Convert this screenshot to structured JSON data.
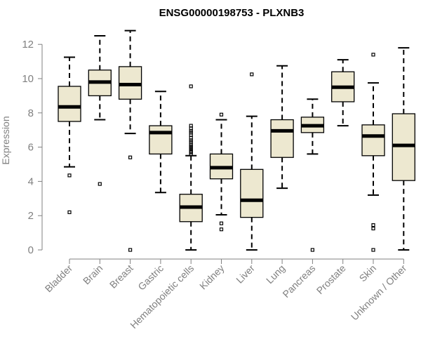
{
  "chart_data": {
    "type": "boxplot",
    "title": "ENSG00000198753 - PLXNB3",
    "xlabel": "",
    "ylabel": "Expression",
    "ylim": [
      0,
      12.6
    ],
    "yticks": [
      0,
      2,
      4,
      6,
      8,
      10,
      12
    ],
    "box_fill": "#ede8d0",
    "categories": [
      "Bladder",
      "Brain",
      "Breast",
      "Gastric",
      "Hematopoietic cells",
      "Kidney",
      "Liver",
      "Lung",
      "Pancreas",
      "Prostate",
      "Skin",
      "Unknown / Other"
    ],
    "boxes": [
      {
        "name": "Bladder",
        "min": 4.85,
        "q1": 7.5,
        "median": 8.35,
        "q3": 9.55,
        "max": 11.25,
        "outliers": [
          4.35,
          2.2
        ]
      },
      {
        "name": "Brain",
        "min": 7.6,
        "q1": 9.0,
        "median": 9.8,
        "q3": 10.5,
        "max": 12.5,
        "outliers": [
          3.85
        ]
      },
      {
        "name": "Breast",
        "min": 6.8,
        "q1": 8.8,
        "median": 9.65,
        "q3": 10.7,
        "max": 12.8,
        "outliers": [
          5.4,
          0.0
        ]
      },
      {
        "name": "Gastric",
        "min": 3.35,
        "q1": 5.6,
        "median": 6.85,
        "q3": 7.25,
        "max": 9.25,
        "outliers": []
      },
      {
        "name": "Hematopoietic cells",
        "min": 0.0,
        "q1": 1.65,
        "median": 2.5,
        "q3": 3.25,
        "max": 5.5,
        "outliers": [
          9.55,
          7.25,
          7.1,
          6.95,
          6.85,
          6.7,
          6.55,
          6.4,
          6.3,
          6.15,
          6.05,
          5.95,
          5.85,
          5.75,
          5.7,
          5.6
        ]
      },
      {
        "name": "Kidney",
        "min": 2.05,
        "q1": 4.15,
        "median": 4.8,
        "q3": 5.6,
        "max": 7.6,
        "outliers": [
          7.9,
          1.55,
          1.2
        ]
      },
      {
        "name": "Liver",
        "min": 0.0,
        "q1": 1.9,
        "median": 2.9,
        "q3": 4.7,
        "max": 7.8,
        "outliers": [
          10.25
        ]
      },
      {
        "name": "Lung",
        "min": 3.6,
        "q1": 5.4,
        "median": 6.95,
        "q3": 7.6,
        "max": 10.75,
        "outliers": []
      },
      {
        "name": "Pancreas",
        "min": 5.6,
        "q1": 6.85,
        "median": 7.25,
        "q3": 7.75,
        "max": 8.8,
        "outliers": [
          0.0
        ]
      },
      {
        "name": "Prostate",
        "min": 7.25,
        "q1": 8.65,
        "median": 9.5,
        "q3": 10.4,
        "max": 11.1,
        "outliers": []
      },
      {
        "name": "Skin",
        "min": 3.2,
        "q1": 5.5,
        "median": 6.65,
        "q3": 7.3,
        "max": 9.75,
        "outliers": [
          11.4,
          1.45,
          1.25,
          0.0
        ]
      },
      {
        "name": "Unknown / Other",
        "min": 0.0,
        "q1": 4.05,
        "median": 6.1,
        "q3": 7.95,
        "max": 11.8,
        "outliers": []
      }
    ]
  }
}
